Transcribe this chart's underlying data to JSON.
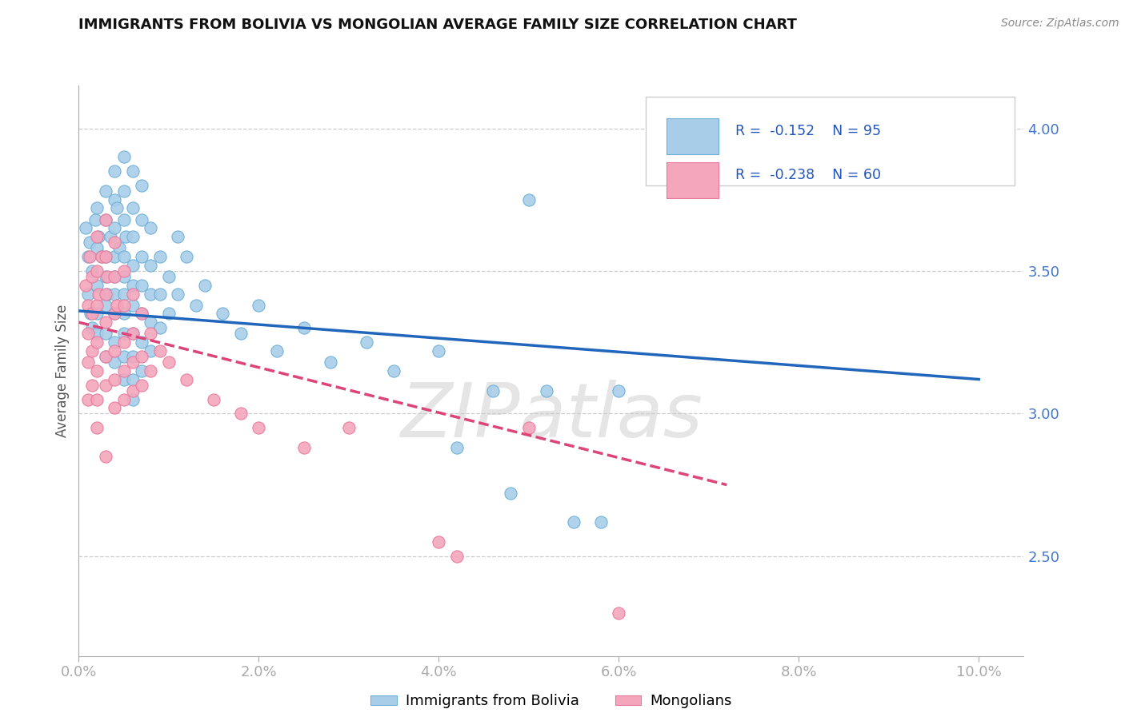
{
  "title": "IMMIGRANTS FROM BOLIVIA VS MONGOLIAN AVERAGE FAMILY SIZE CORRELATION CHART",
  "source": "Source: ZipAtlas.com",
  "ylabel": "Average Family Size",
  "yticks": [
    2.5,
    3.0,
    3.5,
    4.0
  ],
  "xticks": [
    0.0,
    0.02,
    0.04,
    0.06,
    0.08,
    0.1
  ],
  "xticklabels": [
    "0.0%",
    "2.0%",
    "4.0%",
    "6.0%",
    "8.0%",
    "10.0%"
  ],
  "xlim": [
    0.0,
    0.105
  ],
  "ylim": [
    2.15,
    4.15
  ],
  "bolivia_color_face": "#a8cde8",
  "bolivia_color_edge": "#6baed6",
  "mongolian_color_face": "#f4a6bc",
  "mongolian_color_edge": "#e8789a",
  "trendline_bolivia_color": "#2266bb",
  "trendline_mongolian_color": "#dd4477",
  "legend_R_bolivia": "R =  -0.152",
  "legend_N_bolivia": "N = 95",
  "legend_R_mongolian": "R =  -0.238",
  "legend_N_mongolian": "N = 60",
  "watermark": "ZIPatlas",
  "legend_label_bolivia": "Immigrants from Bolivia",
  "legend_label_mongolian": "Mongolians",
  "bolivia_scatter": [
    [
      0.0008,
      3.65
    ],
    [
      0.001,
      3.55
    ],
    [
      0.001,
      3.42
    ],
    [
      0.0012,
      3.6
    ],
    [
      0.0013,
      3.35
    ],
    [
      0.0015,
      3.5
    ],
    [
      0.0015,
      3.3
    ],
    [
      0.0018,
      3.68
    ],
    [
      0.002,
      3.72
    ],
    [
      0.002,
      3.58
    ],
    [
      0.002,
      3.45
    ],
    [
      0.002,
      3.35
    ],
    [
      0.002,
      3.28
    ],
    [
      0.0022,
      3.62
    ],
    [
      0.0025,
      3.55
    ],
    [
      0.003,
      3.78
    ],
    [
      0.003,
      3.68
    ],
    [
      0.003,
      3.55
    ],
    [
      0.003,
      3.48
    ],
    [
      0.003,
      3.38
    ],
    [
      0.003,
      3.28
    ],
    [
      0.003,
      3.2
    ],
    [
      0.0032,
      3.42
    ],
    [
      0.0035,
      3.62
    ],
    [
      0.004,
      3.85
    ],
    [
      0.004,
      3.75
    ],
    [
      0.004,
      3.65
    ],
    [
      0.004,
      3.55
    ],
    [
      0.004,
      3.48
    ],
    [
      0.004,
      3.42
    ],
    [
      0.004,
      3.35
    ],
    [
      0.004,
      3.25
    ],
    [
      0.004,
      3.18
    ],
    [
      0.0042,
      3.72
    ],
    [
      0.0045,
      3.58
    ],
    [
      0.005,
      3.9
    ],
    [
      0.005,
      3.78
    ],
    [
      0.005,
      3.68
    ],
    [
      0.005,
      3.55
    ],
    [
      0.005,
      3.48
    ],
    [
      0.005,
      3.42
    ],
    [
      0.005,
      3.35
    ],
    [
      0.005,
      3.28
    ],
    [
      0.005,
      3.2
    ],
    [
      0.005,
      3.12
    ],
    [
      0.0052,
      3.62
    ],
    [
      0.006,
      3.85
    ],
    [
      0.006,
      3.72
    ],
    [
      0.006,
      3.62
    ],
    [
      0.006,
      3.52
    ],
    [
      0.006,
      3.45
    ],
    [
      0.006,
      3.38
    ],
    [
      0.006,
      3.28
    ],
    [
      0.006,
      3.2
    ],
    [
      0.006,
      3.12
    ],
    [
      0.006,
      3.05
    ],
    [
      0.007,
      3.8
    ],
    [
      0.007,
      3.68
    ],
    [
      0.007,
      3.55
    ],
    [
      0.007,
      3.45
    ],
    [
      0.007,
      3.35
    ],
    [
      0.007,
      3.25
    ],
    [
      0.007,
      3.15
    ],
    [
      0.008,
      3.65
    ],
    [
      0.008,
      3.52
    ],
    [
      0.008,
      3.42
    ],
    [
      0.008,
      3.32
    ],
    [
      0.008,
      3.22
    ],
    [
      0.009,
      3.55
    ],
    [
      0.009,
      3.42
    ],
    [
      0.009,
      3.3
    ],
    [
      0.01,
      3.48
    ],
    [
      0.01,
      3.35
    ],
    [
      0.011,
      3.62
    ],
    [
      0.011,
      3.42
    ],
    [
      0.012,
      3.55
    ],
    [
      0.013,
      3.38
    ],
    [
      0.014,
      3.45
    ],
    [
      0.016,
      3.35
    ],
    [
      0.018,
      3.28
    ],
    [
      0.02,
      3.38
    ],
    [
      0.022,
      3.22
    ],
    [
      0.025,
      3.3
    ],
    [
      0.028,
      3.18
    ],
    [
      0.032,
      3.25
    ],
    [
      0.035,
      3.15
    ],
    [
      0.04,
      3.22
    ],
    [
      0.042,
      2.88
    ],
    [
      0.046,
      3.08
    ],
    [
      0.048,
      2.72
    ],
    [
      0.05,
      3.75
    ],
    [
      0.052,
      3.08
    ],
    [
      0.055,
      2.62
    ],
    [
      0.058,
      2.62
    ],
    [
      0.06,
      3.08
    ]
  ],
  "mongolian_scatter": [
    [
      0.0008,
      3.45
    ],
    [
      0.001,
      3.38
    ],
    [
      0.001,
      3.28
    ],
    [
      0.001,
      3.18
    ],
    [
      0.001,
      3.05
    ],
    [
      0.0012,
      3.55
    ],
    [
      0.0015,
      3.48
    ],
    [
      0.0015,
      3.35
    ],
    [
      0.0015,
      3.22
    ],
    [
      0.0015,
      3.1
    ],
    [
      0.002,
      3.62
    ],
    [
      0.002,
      3.5
    ],
    [
      0.002,
      3.38
    ],
    [
      0.002,
      3.25
    ],
    [
      0.002,
      3.15
    ],
    [
      0.002,
      3.05
    ],
    [
      0.002,
      2.95
    ],
    [
      0.0022,
      3.42
    ],
    [
      0.0025,
      3.55
    ],
    [
      0.003,
      3.68
    ],
    [
      0.003,
      3.55
    ],
    [
      0.003,
      3.42
    ],
    [
      0.003,
      3.32
    ],
    [
      0.003,
      3.2
    ],
    [
      0.003,
      3.1
    ],
    [
      0.003,
      2.85
    ],
    [
      0.0032,
      3.48
    ],
    [
      0.004,
      3.6
    ],
    [
      0.004,
      3.48
    ],
    [
      0.004,
      3.35
    ],
    [
      0.004,
      3.22
    ],
    [
      0.004,
      3.12
    ],
    [
      0.004,
      3.02
    ],
    [
      0.0042,
      3.38
    ],
    [
      0.005,
      3.5
    ],
    [
      0.005,
      3.38
    ],
    [
      0.005,
      3.25
    ],
    [
      0.005,
      3.15
    ],
    [
      0.005,
      3.05
    ],
    [
      0.006,
      3.42
    ],
    [
      0.006,
      3.28
    ],
    [
      0.006,
      3.18
    ],
    [
      0.006,
      3.08
    ],
    [
      0.007,
      3.35
    ],
    [
      0.007,
      3.2
    ],
    [
      0.007,
      3.1
    ],
    [
      0.008,
      3.28
    ],
    [
      0.008,
      3.15
    ],
    [
      0.009,
      3.22
    ],
    [
      0.01,
      3.18
    ],
    [
      0.012,
      3.12
    ],
    [
      0.015,
      3.05
    ],
    [
      0.018,
      3.0
    ],
    [
      0.02,
      2.95
    ],
    [
      0.025,
      2.88
    ],
    [
      0.03,
      2.95
    ],
    [
      0.04,
      2.55
    ],
    [
      0.042,
      2.5
    ],
    [
      0.05,
      2.95
    ],
    [
      0.06,
      2.3
    ]
  ],
  "bolivia_trend_x": [
    0.0,
    0.1
  ],
  "bolivia_trend_y": [
    3.36,
    3.12
  ],
  "mongolian_trend_x": [
    0.0,
    0.072
  ],
  "mongolian_trend_y": [
    3.32,
    2.75
  ]
}
